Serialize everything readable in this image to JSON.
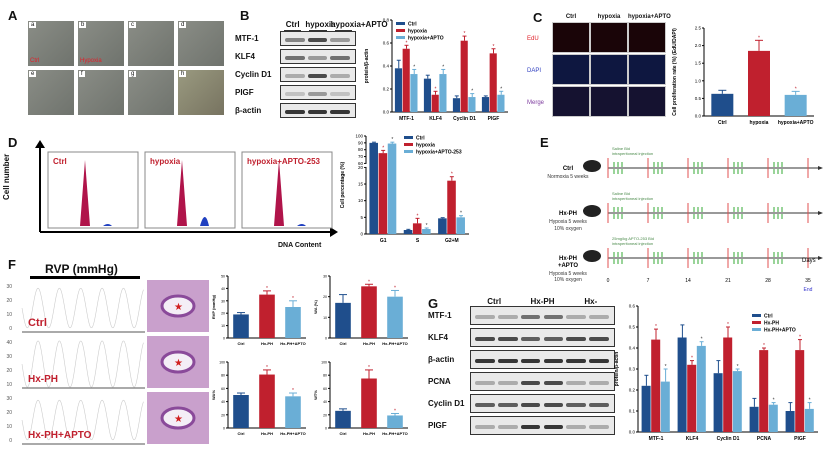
{
  "panels": {
    "A": "A",
    "B": "B",
    "C": "C",
    "D": "D",
    "E": "E",
    "F": "F",
    "G": "G"
  },
  "colors": {
    "ctrl": "#1f4e8c",
    "treat": "#c0202e",
    "apto": "#6aaed6"
  },
  "panelA": {
    "tiles": [
      {
        "letter": "a",
        "text": "Ctrl"
      },
      {
        "letter": "b",
        "text": "Hypoxia"
      },
      {
        "letter": "c"
      },
      {
        "letter": "d"
      },
      {
        "letter": "e"
      },
      {
        "letter": "f"
      },
      {
        "letter": "g"
      },
      {
        "letter": "h"
      }
    ]
  },
  "panelB": {
    "groups": [
      "Ctrl",
      "hypoxia",
      "hypoxia+APTO"
    ],
    "rows": [
      "MTF-1",
      "KLF4",
      "Cyclin D1",
      "PIGF",
      "β-actin"
    ]
  },
  "panelC": {
    "columns": [
      "Ctrl",
      "hypoxia",
      "hypoxia+APTO"
    ],
    "rows": [
      "EdU",
      "DAPI",
      "Merge"
    ]
  },
  "panelD": {
    "histograms": [
      "Ctrl",
      "hypoxia",
      "hypoxia+APTO-253"
    ],
    "ylabel": "Cell number",
    "xlabel": "DNA Content"
  },
  "panelE": {
    "groups": [
      {
        "name": "Ctrl",
        "condition": "Normoxia 5 weeks",
        "treatment": "Saline Bid",
        "route": "intraperitoneal injection"
      },
      {
        "name": "Hx-PH",
        "condition": "Hypoxia 5 weeks",
        "oxygen": "10% oxygen",
        "treatment": "Saline Bid",
        "route": "intraperitoneal injection"
      },
      {
        "name": "Hx-PH",
        "name2": "+APTO",
        "condition": "Hypoxia 5 weeks",
        "oxygen": "10% oxygen",
        "treatment": "25mg/kg APTO-253 Bid",
        "route": "intraperitoneal injection"
      }
    ],
    "days": [
      "0",
      "7",
      "14",
      "21",
      "28",
      "35"
    ],
    "axis_label": "Days",
    "end_label": "End"
  },
  "panelF": {
    "title": "RVP (mmHg)",
    "traces": [
      {
        "label": "Ctrl",
        "ticks": [
          "30",
          "20",
          "10",
          "0"
        ]
      },
      {
        "label": "Hx-PH",
        "ticks": [
          "40",
          "30",
          "20",
          "10"
        ]
      },
      {
        "label": "Hx-PH+APTO",
        "ticks": [
          "30",
          "20",
          "10",
          "0"
        ]
      }
    ]
  },
  "panelG": {
    "groups": [
      "Ctrl",
      "Hx-PH",
      "Hx-PH+APTO"
    ],
    "rows": [
      "MTF-1",
      "KLF4",
      "β-actin",
      "PCNA",
      "Cyclin D1",
      "PIGF"
    ]
  },
  "chart_data": [
    {
      "id": "B",
      "type": "bar",
      "categories": [
        "MTF-1",
        "KLF4",
        "Cyclin D1",
        "PIGF"
      ],
      "ylabel": "protein/β-actin",
      "ylim": [
        0,
        0.8
      ],
      "ticks": [
        "0.0",
        "0.2",
        "0.4",
        "0.6",
        "0.8"
      ],
      "legend": "top-left",
      "series": [
        {
          "name": "Ctrl",
          "values": [
            0.38,
            0.29,
            0.12,
            0.13
          ],
          "err": [
            0.07,
            0.03,
            0.02,
            0.01
          ]
        },
        {
          "name": "hypoxia",
          "values": [
            0.55,
            0.15,
            0.62,
            0.51
          ],
          "err": [
            0.03,
            0.03,
            0.04,
            0.04
          ],
          "sig": [
            true,
            true,
            true,
            true
          ]
        },
        {
          "name": "hypoxia+APTO",
          "values": [
            0.33,
            0.33,
            0.13,
            0.15
          ],
          "err": [
            0.04,
            0.04,
            0.03,
            0.03
          ],
          "sig": [
            true,
            true,
            true,
            true
          ]
        }
      ]
    },
    {
      "id": "C",
      "type": "bar",
      "categories": [
        "Ctrl",
        "hypoxia",
        "hypoxia+APTO"
      ],
      "ylabel": "Cell proliferation rate (%) (EdU/DAPI)",
      "ylim": [
        0,
        2.5
      ],
      "ticks": [
        "0.0",
        "0.5",
        "1.0",
        "1.5",
        "2.0",
        "2.5"
      ],
      "single": true,
      "series": [
        {
          "values": [
            0.63,
            1.85,
            0.6
          ],
          "err": [
            0.1,
            0.3,
            0.1
          ],
          "sig": [
            false,
            true,
            true
          ]
        }
      ]
    },
    {
      "id": "D",
      "type": "bar",
      "categories": [
        "G1",
        "S",
        "G2+M"
      ],
      "ylabel": "Cell percentage (%)",
      "ylim": [
        0,
        100
      ],
      "axis_break": [
        20,
        60
      ],
      "ticks": [
        "0",
        "5",
        "10",
        "15",
        "20",
        "60",
        "70",
        "80",
        "90",
        "100"
      ],
      "legend": "top-right",
      "series": [
        {
          "name": "Ctrl",
          "values": [
            90,
            1.2,
            4.7
          ],
          "err": [
            1,
            0.2,
            0.2
          ]
        },
        {
          "name": "hypoxia",
          "values": [
            75,
            3.2,
            16
          ],
          "err": [
            4,
            1.5,
            1.2
          ],
          "sig": [
            true,
            true,
            true
          ]
        },
        {
          "name": "hypoxia+APTO-253",
          "values": [
            89,
            1.5,
            5
          ],
          "err": [
            2,
            0.3,
            0.5
          ],
          "sig": [
            true,
            true,
            true
          ]
        }
      ]
    },
    {
      "id": "F1",
      "type": "bar",
      "categories": [
        "Ctrl",
        "Hx-PH",
        "Hx-PH+APTO"
      ],
      "ylabel": "RVP (mmHg)",
      "ylim": [
        0,
        50
      ],
      "ticks": [
        "0",
        "10",
        "20",
        "30",
        "40",
        "50"
      ],
      "single": true,
      "series": [
        {
          "values": [
            19,
            35,
            25
          ],
          "err": [
            1.5,
            3,
            5
          ],
          "sig": [
            false,
            true,
            true
          ]
        }
      ]
    },
    {
      "id": "F2",
      "type": "bar",
      "categories": [
        "Ctrl",
        "Hx-PH",
        "Hx-PH+APTO"
      ],
      "ylabel": "WA (%)",
      "ylim": [
        0,
        30
      ],
      "ticks": [
        "0",
        "10",
        "20",
        "30"
      ],
      "single": true,
      "series": [
        {
          "values": [
            17,
            25,
            20
          ],
          "err": [
            4,
            1,
            3
          ],
          "sig": [
            false,
            true,
            true
          ]
        }
      ]
    },
    {
      "id": "F3",
      "type": "bar",
      "categories": [
        "Ctrl",
        "Hx-PH",
        "Hx-PH+APTO"
      ],
      "ylabel": "WA%",
      "ylim": [
        0,
        100
      ],
      "ticks": [
        "0",
        "20",
        "40",
        "60",
        "80",
        "100"
      ],
      "single": true,
      "series": [
        {
          "values": [
            50,
            81,
            48
          ],
          "err": [
            3,
            7,
            5
          ],
          "sig": [
            false,
            true,
            true
          ]
        }
      ]
    },
    {
      "id": "F4",
      "type": "bar",
      "categories": [
        "Ctrl",
        "Hx-PH",
        "Hx-PH+APTO"
      ],
      "ylabel": "WT%",
      "ylim": [
        0,
        100
      ],
      "ticks": [
        "0",
        "20",
        "40",
        "60",
        "80",
        "100"
      ],
      "single": true,
      "series": [
        {
          "values": [
            26,
            75,
            19
          ],
          "err": [
            3,
            13,
            3
          ],
          "sig": [
            false,
            true,
            true
          ]
        }
      ]
    },
    {
      "id": "G",
      "type": "bar",
      "categories": [
        "MTF-1",
        "KLF4",
        "Cyclin D1",
        "PCNA",
        "PIGF"
      ],
      "ylabel": "protein/β-actin",
      "ylim": [
        0,
        0.6
      ],
      "ticks": [
        "0.0",
        "0.1",
        "0.2",
        "0.3",
        "0.4",
        "0.5",
        "0.6"
      ],
      "legend": "top-right",
      "series": [
        {
          "name": "Ctrl",
          "values": [
            0.22,
            0.45,
            0.28,
            0.12,
            0.1
          ],
          "err": [
            0.05,
            0.06,
            0.06,
            0.04,
            0.04
          ]
        },
        {
          "name": "Hx-PH",
          "values": [
            0.44,
            0.32,
            0.45,
            0.39,
            0.39
          ],
          "err": [
            0.05,
            0.02,
            0.05,
            0.01,
            0.05
          ],
          "sig": [
            true,
            true,
            true,
            true,
            true
          ]
        },
        {
          "name": "Hx-PH+APTO",
          "values": [
            0.24,
            0.41,
            0.29,
            0.13,
            0.11
          ],
          "err": [
            0.06,
            0.02,
            0.01,
            0.01,
            0.03
          ],
          "sig": [
            true,
            true,
            true,
            true,
            true
          ]
        }
      ]
    }
  ]
}
